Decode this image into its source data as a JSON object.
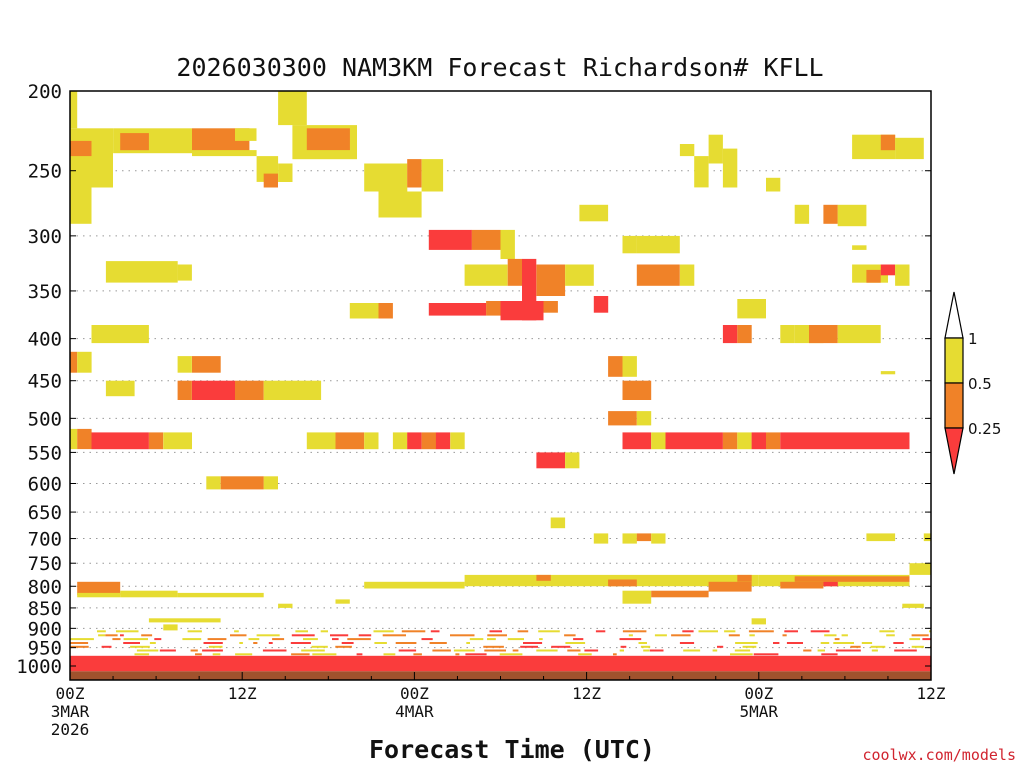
{
  "chart_data": {
    "type": "heatmap",
    "title": "2026030300 NAM3KM Forecast Richardson# KFLL",
    "xlabel": "Forecast Time (UTC)",
    "ylabel": "",
    "credit": "coolwx.com/models",
    "y_axis": {
      "label_values": [
        200,
        250,
        300,
        350,
        400,
        450,
        500,
        550,
        600,
        650,
        700,
        750,
        800,
        850,
        900,
        950,
        1000
      ],
      "labels": [
        "200",
        "250",
        "300",
        "350",
        "400",
        "450",
        "500",
        "550",
        "600",
        "650",
        "700",
        "750",
        "800",
        "850",
        "900",
        "950",
        "1000"
      ],
      "range": [
        200,
        1040
      ]
    },
    "x_axis": {
      "range_hours": [
        0,
        60
      ],
      "ticks": [
        {
          "hour": 0,
          "lines": [
            "00Z",
            "3MAR",
            "2026"
          ]
        },
        {
          "hour": 12,
          "lines": [
            "12Z"
          ]
        },
        {
          "hour": 24,
          "lines": [
            "00Z",
            "4MAR"
          ]
        },
        {
          "hour": 36,
          "lines": [
            "12Z"
          ]
        },
        {
          "hour": 48,
          "lines": [
            "00Z",
            "5MAR"
          ]
        },
        {
          "hour": 60,
          "lines": [
            "12Z"
          ]
        }
      ]
    },
    "legend": {
      "labels": [
        "1",
        "0.5",
        "0.25"
      ],
      "bins": [
        {
          "name": "0.5-1",
          "color": "#e6dc32"
        },
        {
          "name": "0.25-0.5",
          "color": "#f08228"
        },
        {
          "name": "<0.25",
          "color": "#fa3c3c"
        }
      ],
      "placement": "right"
    },
    "ground_color": "#a0522d",
    "colors": {
      "yellow": "#e6dc32",
      "orange": "#f08228",
      "red": "#fa3c3c"
    },
    "cells": [
      {
        "h0": 0,
        "h1": 0.5,
        "p0": 200,
        "p1": 222,
        "c": "yellow"
      },
      {
        "h0": 0,
        "h1": 1.5,
        "p0": 222,
        "p1": 290,
        "c": "yellow"
      },
      {
        "h0": 0,
        "h1": 1.5,
        "p0": 230,
        "p1": 240,
        "c": "orange"
      },
      {
        "h0": 1.5,
        "h1": 3,
        "p0": 222,
        "p1": 262,
        "c": "yellow"
      },
      {
        "h0": 3,
        "h1": 8.5,
        "p0": 222,
        "p1": 238,
        "c": "yellow"
      },
      {
        "h0": 3.5,
        "h1": 5.5,
        "p0": 225,
        "p1": 236,
        "c": "orange"
      },
      {
        "h0": 8.5,
        "h1": 12.5,
        "p0": 222,
        "p1": 238,
        "c": "orange"
      },
      {
        "h0": 8.5,
        "h1": 13,
        "p0": 236,
        "p1": 240,
        "c": "yellow"
      },
      {
        "h0": 11.5,
        "h1": 13,
        "p0": 222,
        "p1": 230,
        "c": "yellow"
      },
      {
        "h0": 13,
        "h1": 14.5,
        "p0": 240,
        "p1": 258,
        "c": "yellow"
      },
      {
        "h0": 13.5,
        "h1": 14.5,
        "p0": 252,
        "p1": 262,
        "c": "orange"
      },
      {
        "h0": 14.5,
        "h1": 15.5,
        "p0": 245,
        "p1": 258,
        "c": "yellow"
      },
      {
        "h0": 14.5,
        "h1": 16.5,
        "p0": 200,
        "p1": 220,
        "c": "yellow"
      },
      {
        "h0": 15.5,
        "h1": 20,
        "p0": 220,
        "p1": 242,
        "c": "yellow"
      },
      {
        "h0": 16.5,
        "h1": 19.5,
        "p0": 222,
        "p1": 236,
        "c": "orange"
      },
      {
        "h0": 20.5,
        "h1": 23.5,
        "p0": 245,
        "p1": 265,
        "c": "yellow"
      },
      {
        "h0": 21.5,
        "h1": 24.5,
        "p0": 265,
        "p1": 285,
        "c": "yellow"
      },
      {
        "h0": 23.5,
        "h1": 24.5,
        "p0": 242,
        "p1": 262,
        "c": "orange"
      },
      {
        "h0": 24.5,
        "h1": 26,
        "p0": 242,
        "p1": 265,
        "c": "yellow"
      },
      {
        "h0": 2.5,
        "h1": 7.5,
        "p0": 322,
        "p1": 342,
        "c": "yellow"
      },
      {
        "h0": 7.5,
        "h1": 8.5,
        "p0": 325,
        "p1": 340,
        "c": "yellow"
      },
      {
        "h0": 25,
        "h1": 28,
        "p0": 295,
        "p1": 312,
        "c": "red"
      },
      {
        "h0": 28,
        "h1": 30,
        "p0": 295,
        "p1": 312,
        "c": "orange"
      },
      {
        "h0": 30,
        "h1": 31,
        "p0": 295,
        "p1": 320,
        "c": "yellow"
      },
      {
        "h0": 27.5,
        "h1": 30.5,
        "p0": 325,
        "p1": 345,
        "c": "yellow"
      },
      {
        "h0": 30.5,
        "h1": 31.5,
        "p0": 320,
        "p1": 345,
        "c": "orange"
      },
      {
        "h0": 31.5,
        "h1": 32.5,
        "p0": 320,
        "p1": 380,
        "c": "red"
      },
      {
        "h0": 32.5,
        "h1": 34.5,
        "p0": 325,
        "p1": 355,
        "c": "orange"
      },
      {
        "h0": 34.5,
        "h1": 36.5,
        "p0": 325,
        "p1": 345,
        "c": "yellow"
      },
      {
        "h0": 19.5,
        "h1": 21.5,
        "p0": 362,
        "p1": 378,
        "c": "yellow"
      },
      {
        "h0": 21.5,
        "h1": 22.5,
        "p0": 362,
        "p1": 378,
        "c": "orange"
      },
      {
        "h0": 25,
        "h1": 29,
        "p0": 362,
        "p1": 375,
        "c": "red"
      },
      {
        "h0": 29,
        "h1": 30,
        "p0": 360,
        "p1": 375,
        "c": "orange"
      },
      {
        "h0": 30,
        "h1": 33,
        "p0": 360,
        "p1": 380,
        "c": "red"
      },
      {
        "h0": 33,
        "h1": 34,
        "p0": 360,
        "p1": 372,
        "c": "orange"
      },
      {
        "h0": 36.5,
        "h1": 37.5,
        "p0": 355,
        "p1": 372,
        "c": "red"
      },
      {
        "h0": 38.5,
        "h1": 39.5,
        "p0": 300,
        "p1": 315,
        "c": "yellow"
      },
      {
        "h0": 39.5,
        "h1": 42.5,
        "p0": 300,
        "p1": 315,
        "c": "yellow"
      },
      {
        "h0": 39.5,
        "h1": 42.5,
        "p0": 325,
        "p1": 345,
        "c": "orange"
      },
      {
        "h0": 42.5,
        "h1": 43.5,
        "p0": 325,
        "p1": 345,
        "c": "yellow"
      },
      {
        "h0": 35.5,
        "h1": 37.5,
        "p0": 275,
        "p1": 288,
        "c": "yellow"
      },
      {
        "h0": 42.5,
        "h1": 43.5,
        "p0": 232,
        "p1": 240,
        "c": "yellow"
      },
      {
        "h0": 43.5,
        "h1": 44.5,
        "p0": 240,
        "p1": 262,
        "c": "yellow"
      },
      {
        "h0": 44.5,
        "h1": 45.5,
        "p0": 226,
        "p1": 245,
        "c": "yellow"
      },
      {
        "h0": 45.5,
        "h1": 46.5,
        "p0": 235,
        "p1": 262,
        "c": "yellow"
      },
      {
        "h0": 48.5,
        "h1": 49.5,
        "p0": 255,
        "p1": 265,
        "c": "yellow"
      },
      {
        "h0": 50.5,
        "h1": 51.5,
        "p0": 275,
        "p1": 290,
        "c": "yellow"
      },
      {
        "h0": 52.5,
        "h1": 53.5,
        "p0": 275,
        "p1": 290,
        "c": "orange"
      },
      {
        "h0": 53.5,
        "h1": 55.5,
        "p0": 275,
        "p1": 292,
        "c": "yellow"
      },
      {
        "h0": 54.5,
        "h1": 57.5,
        "p0": 226,
        "p1": 242,
        "c": "yellow"
      },
      {
        "h0": 56.5,
        "h1": 57.5,
        "p0": 226,
        "p1": 236,
        "c": "orange"
      },
      {
        "h0": 57.5,
        "h1": 59.5,
        "p0": 228,
        "p1": 242,
        "c": "yellow"
      },
      {
        "h0": 54.5,
        "h1": 57,
        "p0": 325,
        "p1": 342,
        "c": "yellow"
      },
      {
        "h0": 55.5,
        "h1": 56.5,
        "p0": 330,
        "p1": 342,
        "c": "orange"
      },
      {
        "h0": 56.5,
        "h1": 57.5,
        "p0": 325,
        "p1": 335,
        "c": "red"
      },
      {
        "h0": 57.5,
        "h1": 58.5,
        "p0": 325,
        "p1": 345,
        "c": "yellow"
      },
      {
        "h0": 54.5,
        "h1": 55.5,
        "p0": 308,
        "p1": 312,
        "c": "yellow"
      },
      {
        "h0": 46.5,
        "h1": 48.5,
        "p0": 358,
        "p1": 378,
        "c": "yellow"
      },
      {
        "h0": 45.5,
        "h1": 46.5,
        "p0": 385,
        "p1": 405,
        "c": "red"
      },
      {
        "h0": 46.5,
        "h1": 47.5,
        "p0": 385,
        "p1": 405,
        "c": "orange"
      },
      {
        "h0": 49.5,
        "h1": 50.5,
        "p0": 385,
        "p1": 405,
        "c": "yellow"
      },
      {
        "h0": 50.5,
        "h1": 52.5,
        "p0": 385,
        "p1": 405,
        "c": "yellow"
      },
      {
        "h0": 51.5,
        "h1": 53.5,
        "p0": 385,
        "p1": 405,
        "c": "orange"
      },
      {
        "h0": 53.5,
        "h1": 56.5,
        "p0": 385,
        "p1": 405,
        "c": "yellow"
      },
      {
        "h0": 1.5,
        "h1": 5.5,
        "p0": 385,
        "p1": 405,
        "c": "yellow"
      },
      {
        "h0": 0,
        "h1": 0.5,
        "p0": 415,
        "p1": 440,
        "c": "orange"
      },
      {
        "h0": 0.5,
        "h1": 1.5,
        "p0": 415,
        "p1": 440,
        "c": "yellow"
      },
      {
        "h0": 2.5,
        "h1": 4.5,
        "p0": 450,
        "p1": 470,
        "c": "yellow"
      },
      {
        "h0": 7.5,
        "h1": 8.5,
        "p0": 420,
        "p1": 440,
        "c": "yellow"
      },
      {
        "h0": 8.5,
        "h1": 10.5,
        "p0": 420,
        "p1": 440,
        "c": "orange"
      },
      {
        "h0": 7.5,
        "h1": 8.5,
        "p0": 450,
        "p1": 475,
        "c": "orange"
      },
      {
        "h0": 8.5,
        "h1": 11.5,
        "p0": 450,
        "p1": 475,
        "c": "red"
      },
      {
        "h0": 11.5,
        "h1": 13.5,
        "p0": 450,
        "p1": 475,
        "c": "orange"
      },
      {
        "h0": 13.5,
        "h1": 17.5,
        "p0": 450,
        "p1": 475,
        "c": "yellow"
      },
      {
        "h0": 37.5,
        "h1": 38.5,
        "p0": 420,
        "p1": 445,
        "c": "orange"
      },
      {
        "h0": 38.5,
        "h1": 39.5,
        "p0": 420,
        "p1": 445,
        "c": "yellow"
      },
      {
        "h0": 38.5,
        "h1": 40.5,
        "p0": 450,
        "p1": 475,
        "c": "orange"
      },
      {
        "h0": 37.5,
        "h1": 39.5,
        "p0": 490,
        "p1": 510,
        "c": "orange"
      },
      {
        "h0": 39.5,
        "h1": 40.5,
        "p0": 490,
        "p1": 510,
        "c": "yellow"
      },
      {
        "h0": 56.5,
        "h1": 57.5,
        "p0": 438,
        "p1": 442,
        "c": "yellow"
      },
      {
        "h0": 0,
        "h1": 0.5,
        "p0": 515,
        "p1": 545,
        "c": "yellow"
      },
      {
        "h0": 0.5,
        "h1": 1.5,
        "p0": 515,
        "p1": 545,
        "c": "orange"
      },
      {
        "h0": 1.5,
        "h1": 5.5,
        "p0": 520,
        "p1": 545,
        "c": "red"
      },
      {
        "h0": 5.5,
        "h1": 6.5,
        "p0": 520,
        "p1": 545,
        "c": "orange"
      },
      {
        "h0": 6.5,
        "h1": 8.5,
        "p0": 520,
        "p1": 545,
        "c": "yellow"
      },
      {
        "h0": 16.5,
        "h1": 18.5,
        "p0": 520,
        "p1": 545,
        "c": "yellow"
      },
      {
        "h0": 18.5,
        "h1": 20.5,
        "p0": 520,
        "p1": 545,
        "c": "orange"
      },
      {
        "h0": 20.5,
        "h1": 21.5,
        "p0": 520,
        "p1": 545,
        "c": "yellow"
      },
      {
        "h0": 22.5,
        "h1": 23.5,
        "p0": 520,
        "p1": 545,
        "c": "yellow"
      },
      {
        "h0": 23.5,
        "h1": 24.5,
        "p0": 520,
        "p1": 545,
        "c": "red"
      },
      {
        "h0": 24.5,
        "h1": 25.5,
        "p0": 520,
        "p1": 545,
        "c": "orange"
      },
      {
        "h0": 25.5,
        "h1": 26.5,
        "p0": 520,
        "p1": 545,
        "c": "red"
      },
      {
        "h0": 26.5,
        "h1": 27.5,
        "p0": 520,
        "p1": 545,
        "c": "yellow"
      },
      {
        "h0": 38.5,
        "h1": 40.5,
        "p0": 520,
        "p1": 545,
        "c": "red"
      },
      {
        "h0": 40.5,
        "h1": 41.5,
        "p0": 520,
        "p1": 545,
        "c": "yellow"
      },
      {
        "h0": 41.5,
        "h1": 45.5,
        "p0": 520,
        "p1": 545,
        "c": "red"
      },
      {
        "h0": 45.5,
        "h1": 46.5,
        "p0": 520,
        "p1": 545,
        "c": "orange"
      },
      {
        "h0": 46.5,
        "h1": 47.5,
        "p0": 520,
        "p1": 545,
        "c": "yellow"
      },
      {
        "h0": 47.5,
        "h1": 48.5,
        "p0": 520,
        "p1": 545,
        "c": "red"
      },
      {
        "h0": 48.5,
        "h1": 49.5,
        "p0": 520,
        "p1": 545,
        "c": "orange"
      },
      {
        "h0": 49.5,
        "h1": 58.5,
        "p0": 520,
        "p1": 545,
        "c": "red"
      },
      {
        "h0": 32.5,
        "h1": 34.5,
        "p0": 550,
        "p1": 575,
        "c": "red"
      },
      {
        "h0": 34.5,
        "h1": 35.5,
        "p0": 550,
        "p1": 575,
        "c": "yellow"
      },
      {
        "h0": 9.5,
        "h1": 10.5,
        "p0": 588,
        "p1": 610,
        "c": "yellow"
      },
      {
        "h0": 10.5,
        "h1": 13.5,
        "p0": 588,
        "p1": 610,
        "c": "orange"
      },
      {
        "h0": 13.5,
        "h1": 14.5,
        "p0": 588,
        "p1": 610,
        "c": "yellow"
      },
      {
        "h0": 33.5,
        "h1": 34.5,
        "p0": 660,
        "p1": 680,
        "c": "yellow"
      },
      {
        "h0": 36.5,
        "h1": 37.5,
        "p0": 690,
        "p1": 710,
        "c": "yellow"
      },
      {
        "h0": 38.5,
        "h1": 39.5,
        "p0": 690,
        "p1": 710,
        "c": "yellow"
      },
      {
        "h0": 39.5,
        "h1": 40.5,
        "p0": 690,
        "p1": 705,
        "c": "orange"
      },
      {
        "h0": 40.5,
        "h1": 41.5,
        "p0": 690,
        "p1": 710,
        "c": "yellow"
      },
      {
        "h0": 55.5,
        "h1": 57.5,
        "p0": 690,
        "p1": 705,
        "c": "yellow"
      },
      {
        "h0": 59.5,
        "h1": 60,
        "p0": 690,
        "p1": 705,
        "c": "yellow"
      },
      {
        "h0": 58.5,
        "h1": 60,
        "p0": 750,
        "p1": 775,
        "c": "yellow"
      },
      {
        "h0": 27.5,
        "h1": 40,
        "p0": 775,
        "p1": 800,
        "c": "yellow"
      },
      {
        "h0": 32.5,
        "h1": 33.5,
        "p0": 775,
        "p1": 788,
        "c": "orange"
      },
      {
        "h0": 37.5,
        "h1": 39.5,
        "p0": 785,
        "p1": 800,
        "c": "orange"
      },
      {
        "h0": 40,
        "h1": 48,
        "p0": 775,
        "p1": 800,
        "c": "yellow"
      },
      {
        "h0": 44.5,
        "h1": 47.5,
        "p0": 790,
        "p1": 812,
        "c": "orange"
      },
      {
        "h0": 46.5,
        "h1": 47.5,
        "p0": 775,
        "p1": 790,
        "c": "orange"
      },
      {
        "h0": 48,
        "h1": 58.5,
        "p0": 775,
        "p1": 800,
        "c": "yellow"
      },
      {
        "h0": 50.5,
        "h1": 58.5,
        "p0": 778,
        "p1": 790,
        "c": "orange"
      },
      {
        "h0": 49.5,
        "h1": 52.5,
        "p0": 790,
        "p1": 805,
        "c": "orange"
      },
      {
        "h0": 52.5,
        "h1": 53.5,
        "p0": 790,
        "p1": 800,
        "c": "red"
      },
      {
        "h0": 20.5,
        "h1": 27.5,
        "p0": 790,
        "p1": 805,
        "c": "yellow"
      },
      {
        "h0": 0.5,
        "h1": 3.5,
        "p0": 790,
        "p1": 820,
        "c": "orange"
      },
      {
        "h0": 0.5,
        "h1": 3.5,
        "p0": 815,
        "p1": 825,
        "c": "yellow"
      },
      {
        "h0": 3.5,
        "h1": 7.5,
        "p0": 810,
        "p1": 825,
        "c": "yellow"
      },
      {
        "h0": 7.5,
        "h1": 13.5,
        "p0": 815,
        "p1": 825,
        "c": "yellow"
      },
      {
        "h0": 38.5,
        "h1": 40.5,
        "p0": 810,
        "p1": 840,
        "c": "yellow"
      },
      {
        "h0": 40.5,
        "h1": 44.5,
        "p0": 810,
        "p1": 825,
        "c": "orange"
      },
      {
        "h0": 58,
        "h1": 59.5,
        "p0": 840,
        "p1": 850,
        "c": "yellow"
      },
      {
        "h0": 14.5,
        "h1": 15.5,
        "p0": 840,
        "p1": 850,
        "c": "yellow"
      },
      {
        "h0": 18.5,
        "h1": 19.5,
        "p0": 830,
        "p1": 840,
        "c": "yellow"
      },
      {
        "h0": 5.5,
        "h1": 10.5,
        "p0": 875,
        "p1": 885,
        "c": "yellow"
      },
      {
        "h0": 6.5,
        "h1": 7.5,
        "p0": 890,
        "p1": 905,
        "c": "yellow"
      },
      {
        "h0": 47.5,
        "h1": 48.5,
        "p0": 875,
        "p1": 890,
        "c": "yellow"
      },
      {
        "h0": 0,
        "h1": 60,
        "p0": 972,
        "p1": 1015,
        "c": "red"
      }
    ],
    "noise_rows": [
      905,
      915,
      925,
      935,
      945,
      955,
      965
    ]
  }
}
